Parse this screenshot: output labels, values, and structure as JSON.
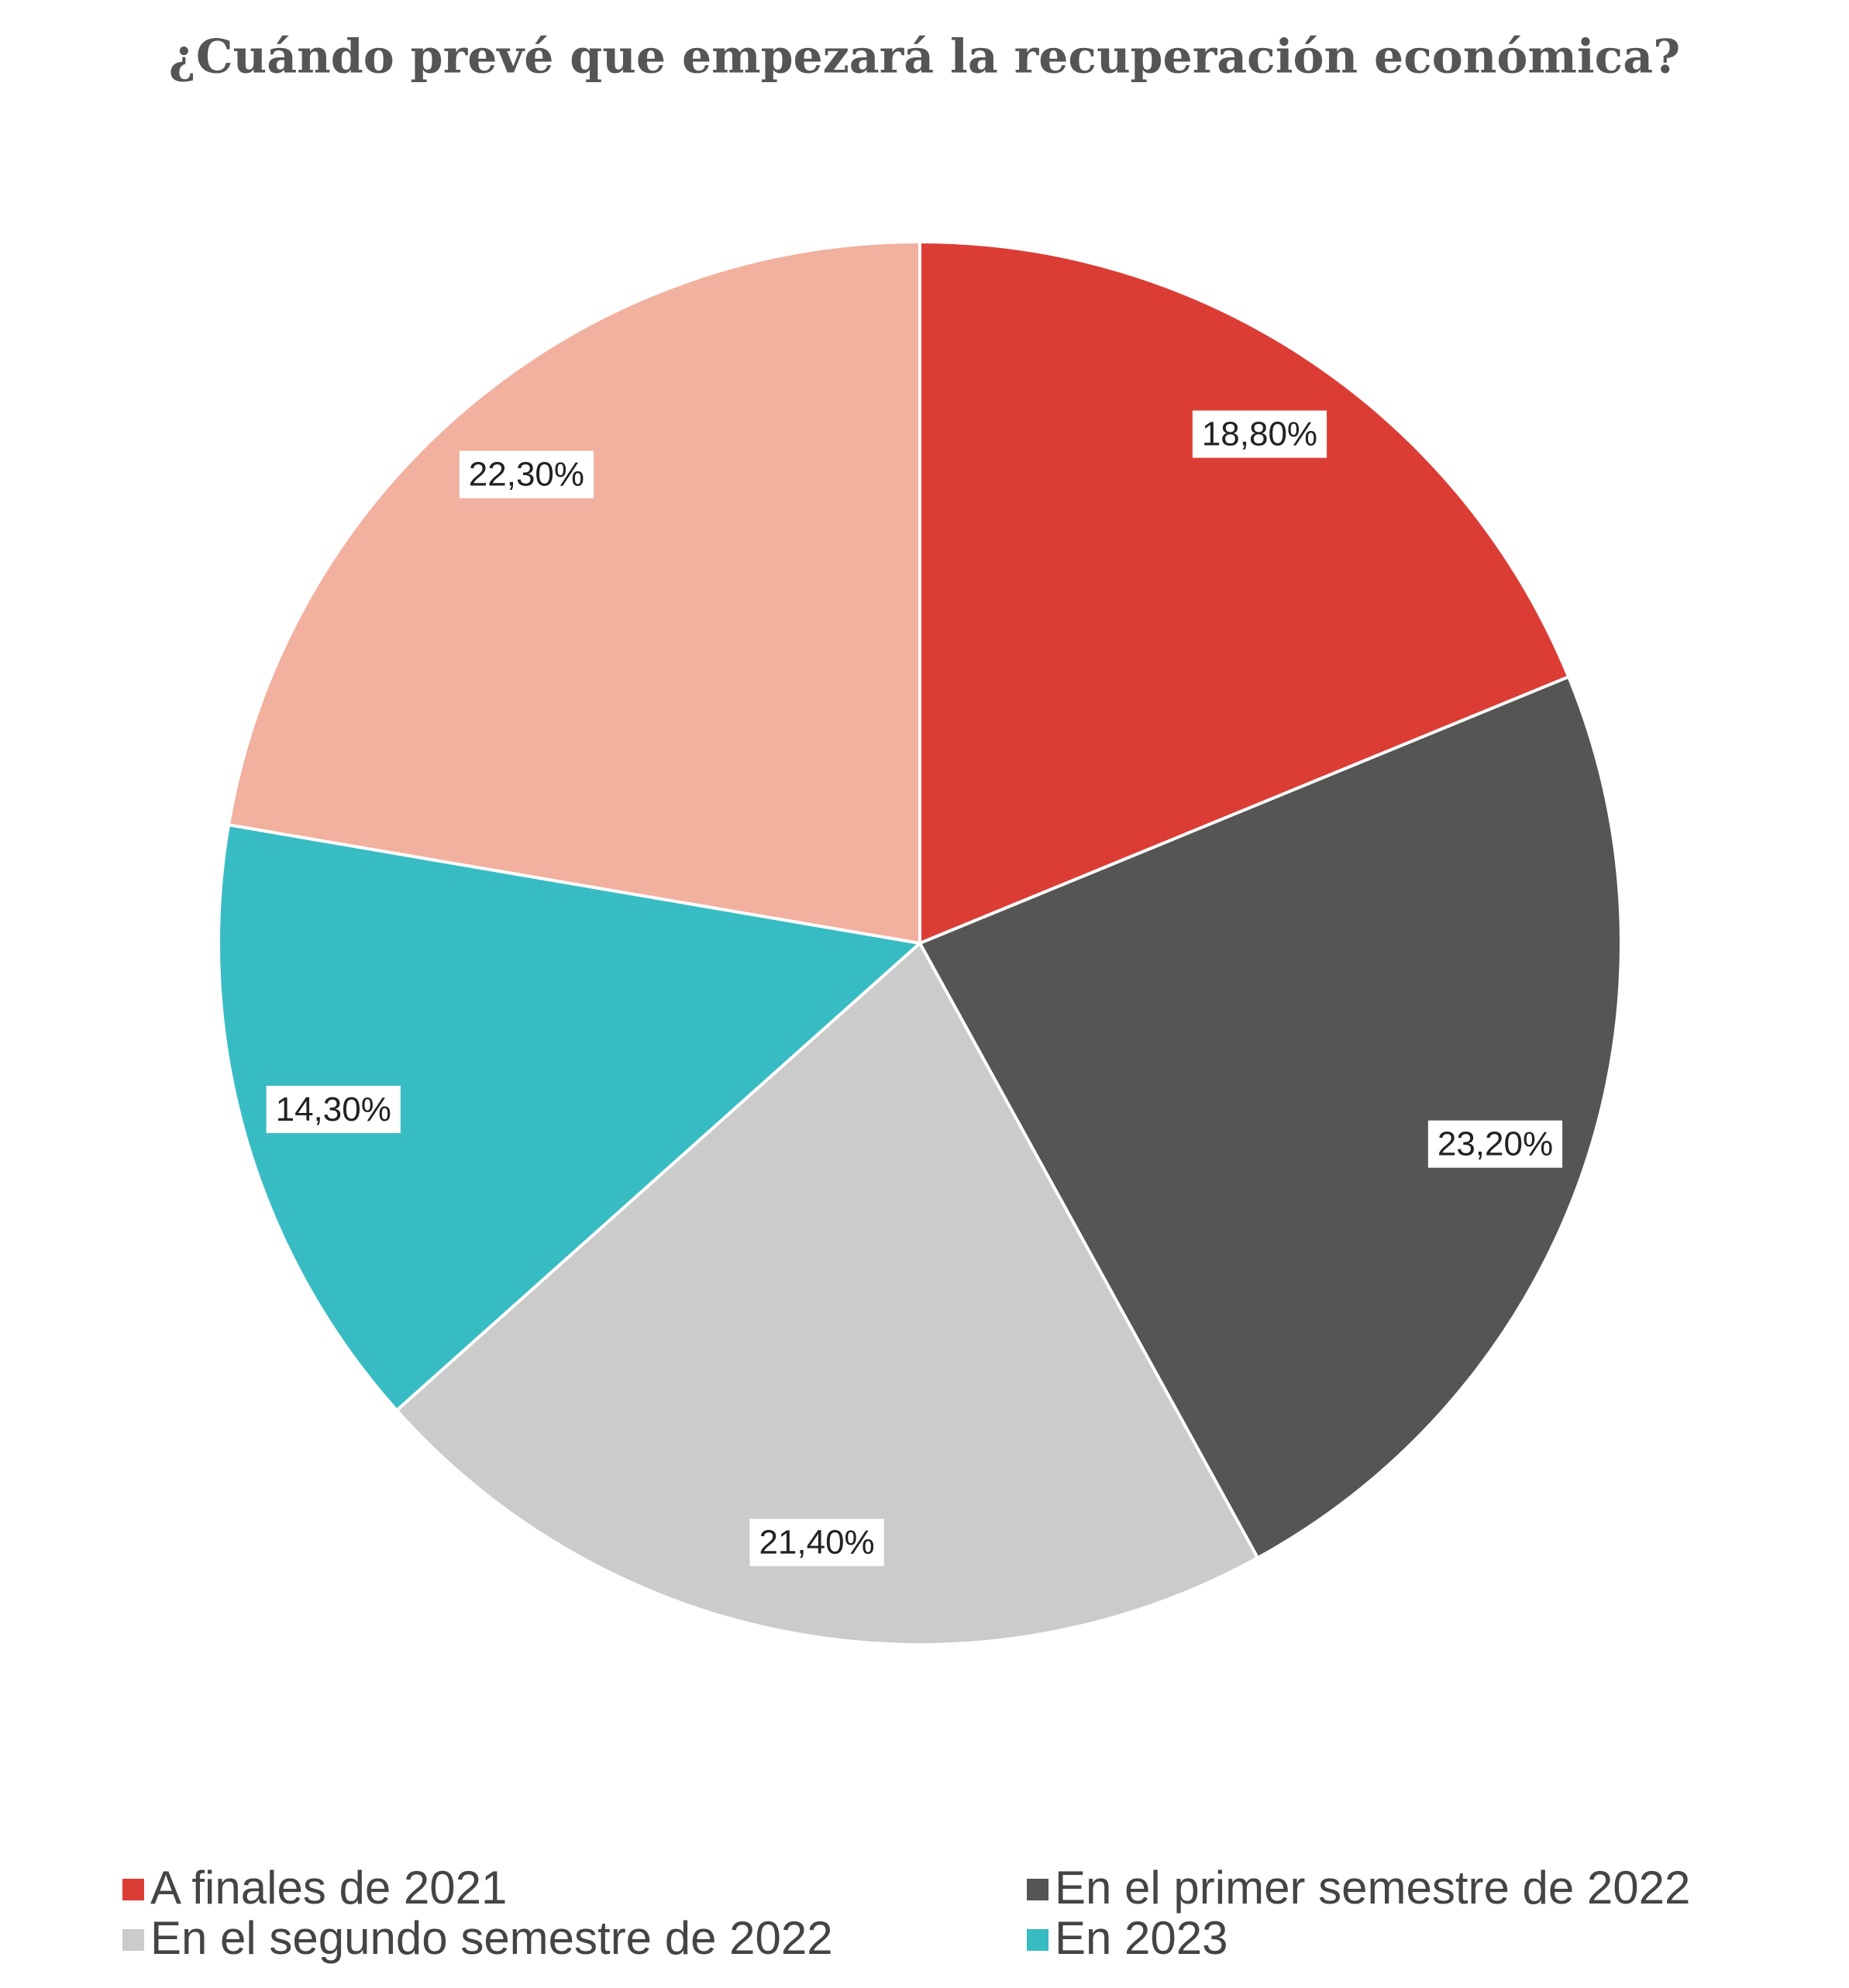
{
  "chart_data": {
    "type": "pie",
    "title": "¿Cuándo prevé que empezará la recuperación económica?",
    "categories": [
      "A finales de 2021",
      "En el primer semestre de 2022",
      "En el segundo semestre de 2022",
      "En 2023",
      null
    ],
    "values": [
      18.8,
      23.2,
      21.4,
      14.3,
      22.3
    ],
    "value_labels": [
      "18,80%",
      "23,20%",
      "21,40%",
      "14,30%",
      "22,30%"
    ],
    "colors": [
      "#db3d35",
      "#555553",
      "#cbcbcb",
      "#38bcc4",
      "#f2b09e"
    ]
  }
}
